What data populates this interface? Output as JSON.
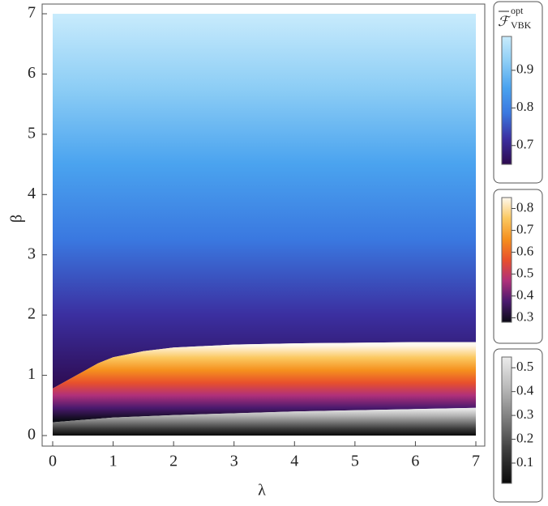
{
  "chart_data": {
    "type": "density",
    "x_label": "λ",
    "y_label": "β",
    "xlim": [
      0,
      7
    ],
    "ylim": [
      0,
      7
    ],
    "xticks": [
      0,
      1,
      2,
      3,
      4,
      5,
      6,
      7
    ],
    "yticks": [
      0,
      1,
      2,
      3,
      4,
      5,
      6,
      7
    ],
    "boundaries": {
      "x": [
        0,
        0.25,
        0.5,
        0.75,
        1,
        1.5,
        2,
        3,
        4,
        5,
        6,
        7
      ],
      "upper": [
        0.78,
        0.92,
        1.06,
        1.2,
        1.3,
        1.4,
        1.46,
        1.51,
        1.53,
        1.54,
        1.55,
        1.55
      ],
      "lower": [
        0.22,
        0.24,
        0.26,
        0.28,
        0.3,
        0.32,
        0.34,
        0.37,
        0.4,
        0.42,
        0.44,
        0.46
      ]
    },
    "legend_title": {
      "symbol": "ℱ",
      "subscript": "VBK",
      "superscript": "opt"
    },
    "colorbars": [
      {
        "lim": [
          0.65,
          0.99
        ],
        "ticks": [
          0.7,
          0.8,
          0.9
        ],
        "colors": [
          "#2d0a4e",
          "#3b2fa0",
          "#3a78e0",
          "#4aa3ef",
          "#8ccdf5",
          "#c8ebfc"
        ]
      },
      {
        "lim": [
          0.28,
          0.85
        ],
        "ticks": [
          0.3,
          0.4,
          0.5,
          0.6,
          0.7,
          0.8
        ],
        "colors": [
          "#0a0a14",
          "#4a1a6e",
          "#b0307a",
          "#e8502c",
          "#f5901e",
          "#fbc860",
          "#fff8ee"
        ]
      },
      {
        "lim": [
          0.015,
          0.545
        ],
        "ticks": [
          0.1,
          0.2,
          0.3,
          0.4,
          0.5
        ],
        "colors": [
          "#0a0a0a",
          "#3a3a3a",
          "#7a7a7a",
          "#b8b8b8",
          "#ececec"
        ]
      }
    ]
  }
}
